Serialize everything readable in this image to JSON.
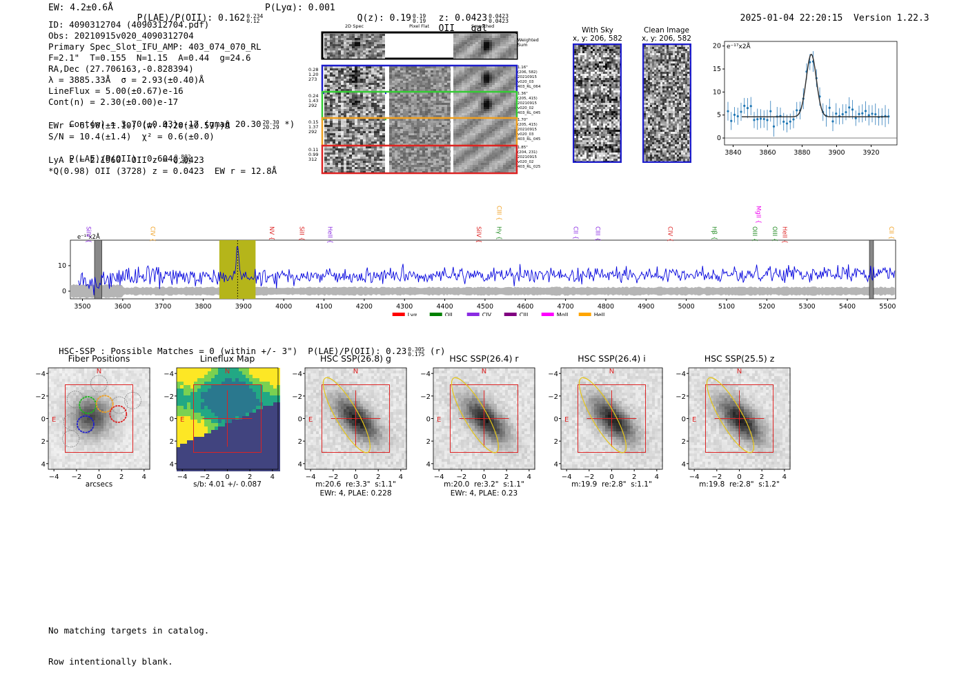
{
  "header": {
    "ew": "EW: 4.2±0.6Å",
    "plae_label": "P(LAE)/P(OII): 0.162",
    "plae_hi": "0.234",
    "plae_lo": "0.12",
    "plya": "P(Lyα): 0.001",
    "qz_label": "Q(z): 0.19",
    "qz_hi": "0.19",
    "qz_lo": "0.19",
    "z_label": "z: 0.0423",
    "z_hi": "0.0423",
    "z_lo": "0.0423",
    "line": "OII",
    "kind": "gal",
    "timestamp": "2025-01-04 22:20:15",
    "version": "Version 1.22.3"
  },
  "info": {
    "lines": [
      "ID: 4090312704 (4090312704.pdf)",
      "Obs: 20210915v020_4090312704",
      "Primary Spec_Slot_IFU_AMP: 403_074_070_RL",
      "F=2.1\"  T=0.155  N=1.15  A=0.44  g=24.6",
      "RA,Dec (27.706163,-0.828394)",
      "λ = 3885.33Å  σ = 2.93(±0.40)Å",
      "LineFlux = 5.00(±0.67)e-16",
      "Cont(n) = 2.30(±0.00)e-17"
    ],
    "contw": "Cont(w) = 3.70(±0.03)e-17 (gmag 20.30",
    "contw_hi": "20.30",
    "contw_lo": "20.29",
    "contw_end": "*)",
    "ewr": "EWr = 6.90(±1.10) (w: 4.20(±0.57))Å",
    "sn": "S/N = 10.4(±1.4)  χ² = 0.6(±0.0)",
    "plae2": "P(LAE)/P(OII): 0.604",
    "plae2_hi": "0.892",
    "plae2_lo": "0.453",
    "lya": "LyA z = 2.1960  OII z = 0.0423",
    "q": "*Q(0.98) OII (3728) z = 0.0423  EW r = 12.8Å"
  },
  "spec2d": {
    "col_titles": [
      "2D Spec",
      "Pixel Flat",
      "Smoothed"
    ],
    "weighted_label": "Weighted Sum",
    "rows": [
      {
        "left": [
          "0.28",
          "1.20",
          "273"
        ],
        "right": [
          "1.16\"",
          "(206, 582)",
          "20210915",
          "v020_03",
          "403_RL_064"
        ],
        "color": "#1c1ccc"
      },
      {
        "left": [
          "0.24",
          "1.43",
          "292"
        ],
        "right": [
          "1.36\"",
          "(205, 415)",
          "20210915",
          "v020_02",
          "403_RL_045"
        ],
        "color": "#33cc33"
      },
      {
        "left": [
          "0.15",
          "1.37",
          "292"
        ],
        "right": [
          "1.70\"",
          "(205, 415)",
          "20210915",
          "v020_03",
          "403_RL_045"
        ],
        "color": "#f0a020"
      },
      {
        "left": [
          "0.11",
          "0.99",
          "312"
        ],
        "right": [
          "1.85\"",
          "(204, 231)",
          "20210915",
          "v020_02",
          "403_RL_025"
        ],
        "color": "#dd2222"
      }
    ]
  },
  "cutouts": [
    {
      "title": "With Sky",
      "coords": "x, y: 206, 582"
    },
    {
      "title": "Clean Image",
      "coords": "x, y: 206, 582"
    }
  ],
  "zoom_chart": {
    "type": "line",
    "units": "e⁻¹⁷x2Å",
    "xlim": [
      3835,
      3935
    ],
    "ylim": [
      -1.5,
      21
    ],
    "xticks": [
      3840,
      3860,
      3880,
      3900,
      3920
    ],
    "yticks": [
      0,
      5,
      10,
      15,
      20
    ],
    "fit": {
      "center": 3885.3,
      "sigma": 2.93,
      "amp": 13.6,
      "cont": 4.6
    }
  },
  "chart_data": {
    "type": "line",
    "title": "",
    "xlabel": "",
    "ylabel": "e⁻¹⁷x2Å",
    "xlim": [
      3470,
      5520
    ],
    "ylim": [
      -3,
      20
    ],
    "xticks": [
      3500,
      3600,
      3700,
      3800,
      3900,
      4000,
      4100,
      4200,
      4300,
      4400,
      4500,
      4600,
      4700,
      4800,
      4900,
      5000,
      5100,
      5200,
      5300,
      5400,
      5500
    ],
    "yticks": [
      0,
      10
    ],
    "highlight_range": [
      3840,
      3930
    ],
    "line_center": 3885.33,
    "series": [
      {
        "name": "flux",
        "color": "#0000dd",
        "baseline": 5.5,
        "noise": 2.2
      }
    ],
    "line_labels": [
      {
        "label": "SiIV",
        "x": 3510,
        "color": "#8a2be2",
        "level": 0
      },
      {
        "label": "CIV",
        "x": 3670,
        "color": "#f0a020",
        "level": 0
      },
      {
        "label": "NV",
        "x": 3965,
        "color": "#dd2222",
        "level": 0
      },
      {
        "label": "SiII",
        "x": 4040,
        "color": "#dd2222",
        "level": 0
      },
      {
        "label": "HeII",
        "x": 4110,
        "color": "#8a2be2",
        "level": 0
      },
      {
        "label": "SiIV",
        "x": 4480,
        "color": "#dd2222",
        "level": 0
      },
      {
        "label": "CIII",
        "x": 4530,
        "color": "#f0a020",
        "level": 1
      },
      {
        "label": "Hγ",
        "x": 4530,
        "color": "#228b22",
        "level": 0
      },
      {
        "label": "CII",
        "x": 4720,
        "color": "#8a2be2",
        "level": 0
      },
      {
        "label": "CIII",
        "x": 4775,
        "color": "#8a2be2",
        "level": 0
      },
      {
        "label": "CIV",
        "x": 4955,
        "color": "#dd2222",
        "level": 0
      },
      {
        "label": "Hβ",
        "x": 5065,
        "color": "#228b22",
        "level": 0
      },
      {
        "label": "OIII",
        "x": 5165,
        "color": "#228b22",
        "level": 0
      },
      {
        "label": "MgII",
        "x": 5175,
        "color": "#ee00ee",
        "level": 1
      },
      {
        "label": "OIII",
        "x": 5215,
        "color": "#228b22",
        "level": 0
      },
      {
        "label": "HeII",
        "x": 5240,
        "color": "#dd2222",
        "level": 0
      },
      {
        "label": "CII",
        "x": 5505,
        "color": "#f0a020",
        "level": 0
      }
    ],
    "legend": [
      {
        "name": "Lyα",
        "color": "#ff0000"
      },
      {
        "name": "OII",
        "color": "#008000"
      },
      {
        "name": "CIV",
        "color": "#8a2be2"
      },
      {
        "name": "CIII",
        "color": "#800080"
      },
      {
        "name": "MgII",
        "color": "#ff00ff"
      },
      {
        "name": "HeII",
        "color": "#ffa500"
      }
    ]
  },
  "hsc": {
    "summary": "HSC-SSP : Possible Matches = 0 (within +/- 3\")  P(LAE)/P(OII): 0.23",
    "summary_hi": "0.305",
    "summary_lo": "0.175",
    "summary_band": "(r)",
    "panels": [
      {
        "title": "Fiber Positions",
        "caption1": "arcsecs",
        "caption2": ""
      },
      {
        "title": "Lineflux Map",
        "caption1": "s/b: 4.01 +/- 0.087",
        "caption2": ""
      },
      {
        "title": "HSC SSP(26.8) g",
        "caption1": "m:20.6  re:3.3\"  s:1.1\"",
        "caption2": "EWr: 4, PLAE: 0.228"
      },
      {
        "title": "HSC SSP(26.4) r",
        "caption1": "m:20.0  re:3.2\"  s:1.1\"",
        "caption2": "EWr: 4, PLAE: 0.23"
      },
      {
        "title": "HSC SSP(26.4) i",
        "caption1": "m:19.9  re:2.8\"  s:1.1\"",
        "caption2": ""
      },
      {
        "title": "HSC SSP(25.5) z",
        "caption1": "m:19.8  re:2.8\"  s:1.2\"",
        "caption2": ""
      }
    ],
    "compass_n": "N",
    "compass_e": "E",
    "axis_ticks": [
      "−4",
      "−2",
      "0",
      "2",
      "4"
    ]
  },
  "footer": {
    "line1": "No matching targets in catalog.",
    "line2": "Row intentionally blank."
  }
}
